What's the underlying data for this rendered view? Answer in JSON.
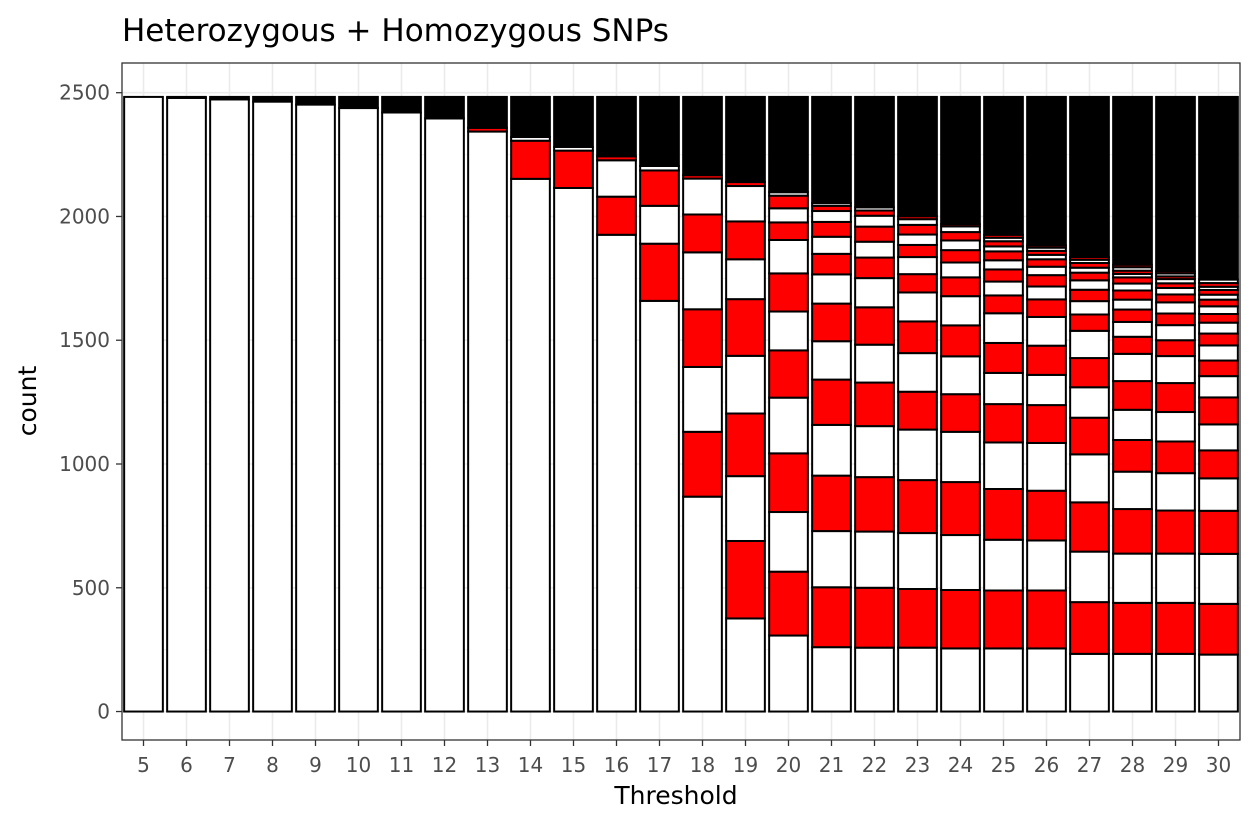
{
  "chart_data": {
    "type": "bar",
    "stacked": true,
    "title": "Heterozygous + Homozygous SNPs",
    "xlabel": "Threshold",
    "ylabel": "count",
    "ylim": [
      -115,
      2620
    ],
    "yticks": [
      0,
      500,
      1000,
      1500,
      2000,
      2500
    ],
    "grid": true,
    "legend": "none",
    "colors": {
      "fill_a": "#ffffff",
      "fill_b": "#ff0000",
      "top": "#000000",
      "outline": "#000000"
    },
    "stack_fill_pattern": "alternating white / red from the bottom, black segment on top",
    "total": 2483,
    "categories": [
      "5",
      "6",
      "7",
      "8",
      "9",
      "10",
      "11",
      "12",
      "13",
      "14",
      "15",
      "16",
      "17",
      "18",
      "19",
      "20",
      "21",
      "22",
      "23",
      "24",
      "25",
      "26",
      "27",
      "28",
      "29",
      "30"
    ],
    "stack_boundaries": [
      [
        2483
      ],
      [
        2479,
        2483
      ],
      [
        2473,
        2483
      ],
      [
        2464,
        2483
      ],
      [
        2452,
        2483
      ],
      [
        2438,
        2483
      ],
      [
        2420,
        2483
      ],
      [
        2396,
        2483
      ],
      [
        2343,
        2358,
        2483
      ],
      [
        2152,
        2306,
        2321,
        2483
      ],
      [
        2115,
        2266,
        2281,
        2483
      ],
      [
        1926,
        2080,
        2227,
        2243,
        2483
      ],
      [
        1659,
        1890,
        2043,
        2186,
        2204,
        2483
      ],
      [
        868,
        1130,
        1392,
        1625,
        1855,
        2008,
        2153,
        2167,
        2483
      ],
      [
        376,
        689,
        951,
        1204,
        1437,
        1666,
        1827,
        1980,
        2123,
        2139,
        2483
      ],
      [
        307,
        565,
        806,
        1043,
        1268,
        1459,
        1616,
        1770,
        1905,
        1976,
        2033,
        2084,
        2098,
        2483
      ],
      [
        260,
        502,
        729,
        953,
        1158,
        1341,
        1496,
        1648,
        1766,
        1849,
        1918,
        1978,
        2022,
        2043,
        2054,
        2483
      ],
      [
        258,
        500,
        727,
        947,
        1153,
        1329,
        1482,
        1633,
        1751,
        1834,
        1898,
        1959,
        2003,
        2024,
        2037,
        2483
      ],
      [
        258,
        495,
        721,
        935,
        1139,
        1292,
        1448,
        1576,
        1693,
        1767,
        1836,
        1885,
        1927,
        1966,
        1989,
        2001,
        2483
      ],
      [
        255,
        491,
        713,
        927,
        1130,
        1282,
        1435,
        1560,
        1678,
        1754,
        1814,
        1864,
        1903,
        1937,
        1960,
        1969,
        2483
      ],
      [
        255,
        489,
        694,
        899,
        1087,
        1242,
        1368,
        1489,
        1609,
        1681,
        1737,
        1786,
        1823,
        1859,
        1879,
        1900,
        1914,
        1926,
        2483
      ],
      [
        255,
        489,
        691,
        892,
        1085,
        1238,
        1360,
        1478,
        1594,
        1665,
        1717,
        1763,
        1797,
        1827,
        1845,
        1861,
        1874,
        1883,
        2483
      ],
      [
        233,
        442,
        646,
        845,
        1039,
        1187,
        1310,
        1428,
        1538,
        1604,
        1658,
        1704,
        1742,
        1773,
        1793,
        1812,
        1825,
        1836,
        2483
      ],
      [
        233,
        439,
        638,
        818,
        969,
        1097,
        1219,
        1335,
        1445,
        1514,
        1574,
        1624,
        1664,
        1701,
        1729,
        1754,
        1768,
        1781,
        1795,
        1805,
        2483
      ],
      [
        233,
        439,
        638,
        812,
        963,
        1091,
        1210,
        1327,
        1436,
        1500,
        1561,
        1608,
        1653,
        1685,
        1711,
        1730,
        1747,
        1758,
        1770,
        1779,
        2483
      ],
      [
        230,
        435,
        637,
        811,
        942,
        1055,
        1160,
        1269,
        1355,
        1418,
        1479,
        1527,
        1571,
        1606,
        1637,
        1664,
        1684,
        1703,
        1716,
        1731,
        1745,
        2483
      ]
    ]
  }
}
